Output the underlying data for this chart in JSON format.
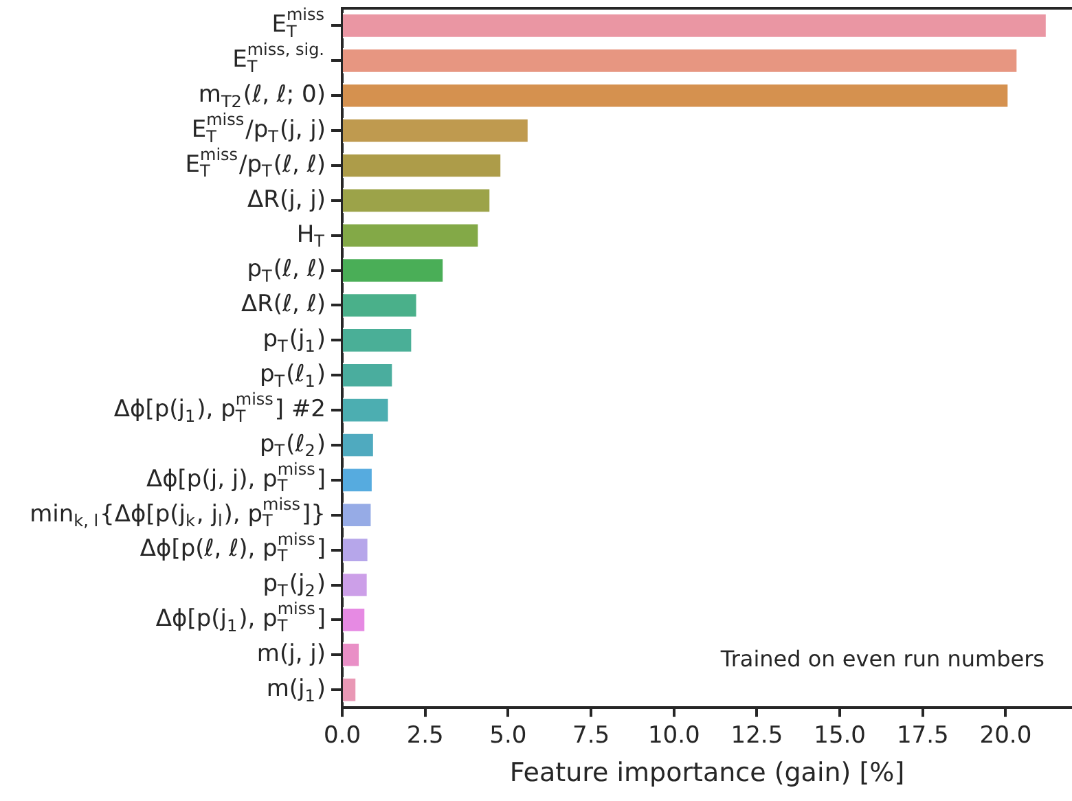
{
  "chart_data": {
    "type": "bar",
    "orientation": "horizontal",
    "xlabel": "Feature importance (gain) [%]",
    "categories": [
      "E$_{T}$$^{miss}$",
      "E$_{T}$$^{miss, sig.}$",
      "m$_{T2}$(ℓ, ℓ; 0)",
      "E$_{T}$$^{miss}$/p$_{T}$(j, j)",
      "E$_{T}$$^{miss}$/p$_{T}$(ℓ, ℓ)",
      "ΔR(j, j)",
      "H$_{T}$",
      "p$_{T}$(ℓ, ℓ)",
      "ΔR(ℓ, ℓ)",
      "p$_{T}$(j$_{1}$)",
      "p$_{T}$(ℓ$_{1}$)",
      "Δϕ[p(j$_{1}$), p$_{T}$$^{miss}$] #2",
      "p$_{T}$(ℓ$_{2}$)",
      "Δϕ[p(j, j), p$_{T}$$^{miss}$]",
      "min$_{k, l}${Δϕ[p(j$_{k}$, j$_{l}$), p$_{T}$$^{miss}$]}",
      "Δϕ[p(ℓ, ℓ), p$_{T}$$^{miss}$]",
      "p$_{T}$(j$_{2}$)",
      "Δϕ[p(j$_{1}$), p$_{T}$$^{miss}$]",
      "m(j, j)",
      "m(j$_{1}$)"
    ],
    "values": [
      21.25,
      20.37,
      20.1,
      5.63,
      4.81,
      4.48,
      4.13,
      3.07,
      2.27,
      2.12,
      1.54,
      1.42,
      0.97,
      0.93,
      0.9,
      0.8,
      0.78,
      0.71,
      0.54,
      0.44
    ],
    "colors": [
      "#ea96a3",
      "#e79681",
      "#d5914f",
      "#bf9a4f",
      "#ad9c49",
      "#9ca349",
      "#83a947",
      "#4aae57",
      "#4ab08a",
      "#4aaf97",
      "#4aad9e",
      "#4caeb1",
      "#4faabf",
      "#56abdf",
      "#96abe6",
      "#b6a6ea",
      "#cc9fe8",
      "#e68ae3",
      "#e98fc6",
      "#e998b5"
    ],
    "xlim": [
      0,
      22
    ],
    "xticks": [
      {
        "value": 0,
        "label": "0.0"
      },
      2.5,
      {
        "value": 5,
        "label": "5.0"
      },
      7.5,
      {
        "value": 10,
        "label": "10.0"
      },
      12.5,
      {
        "value": 15,
        "label": "15.0"
      },
      17.5,
      {
        "value": 20,
        "label": "20.0"
      }
    ],
    "grid": false,
    "legend": false,
    "annotations": [
      "Trained on even run numbers"
    ]
  }
}
